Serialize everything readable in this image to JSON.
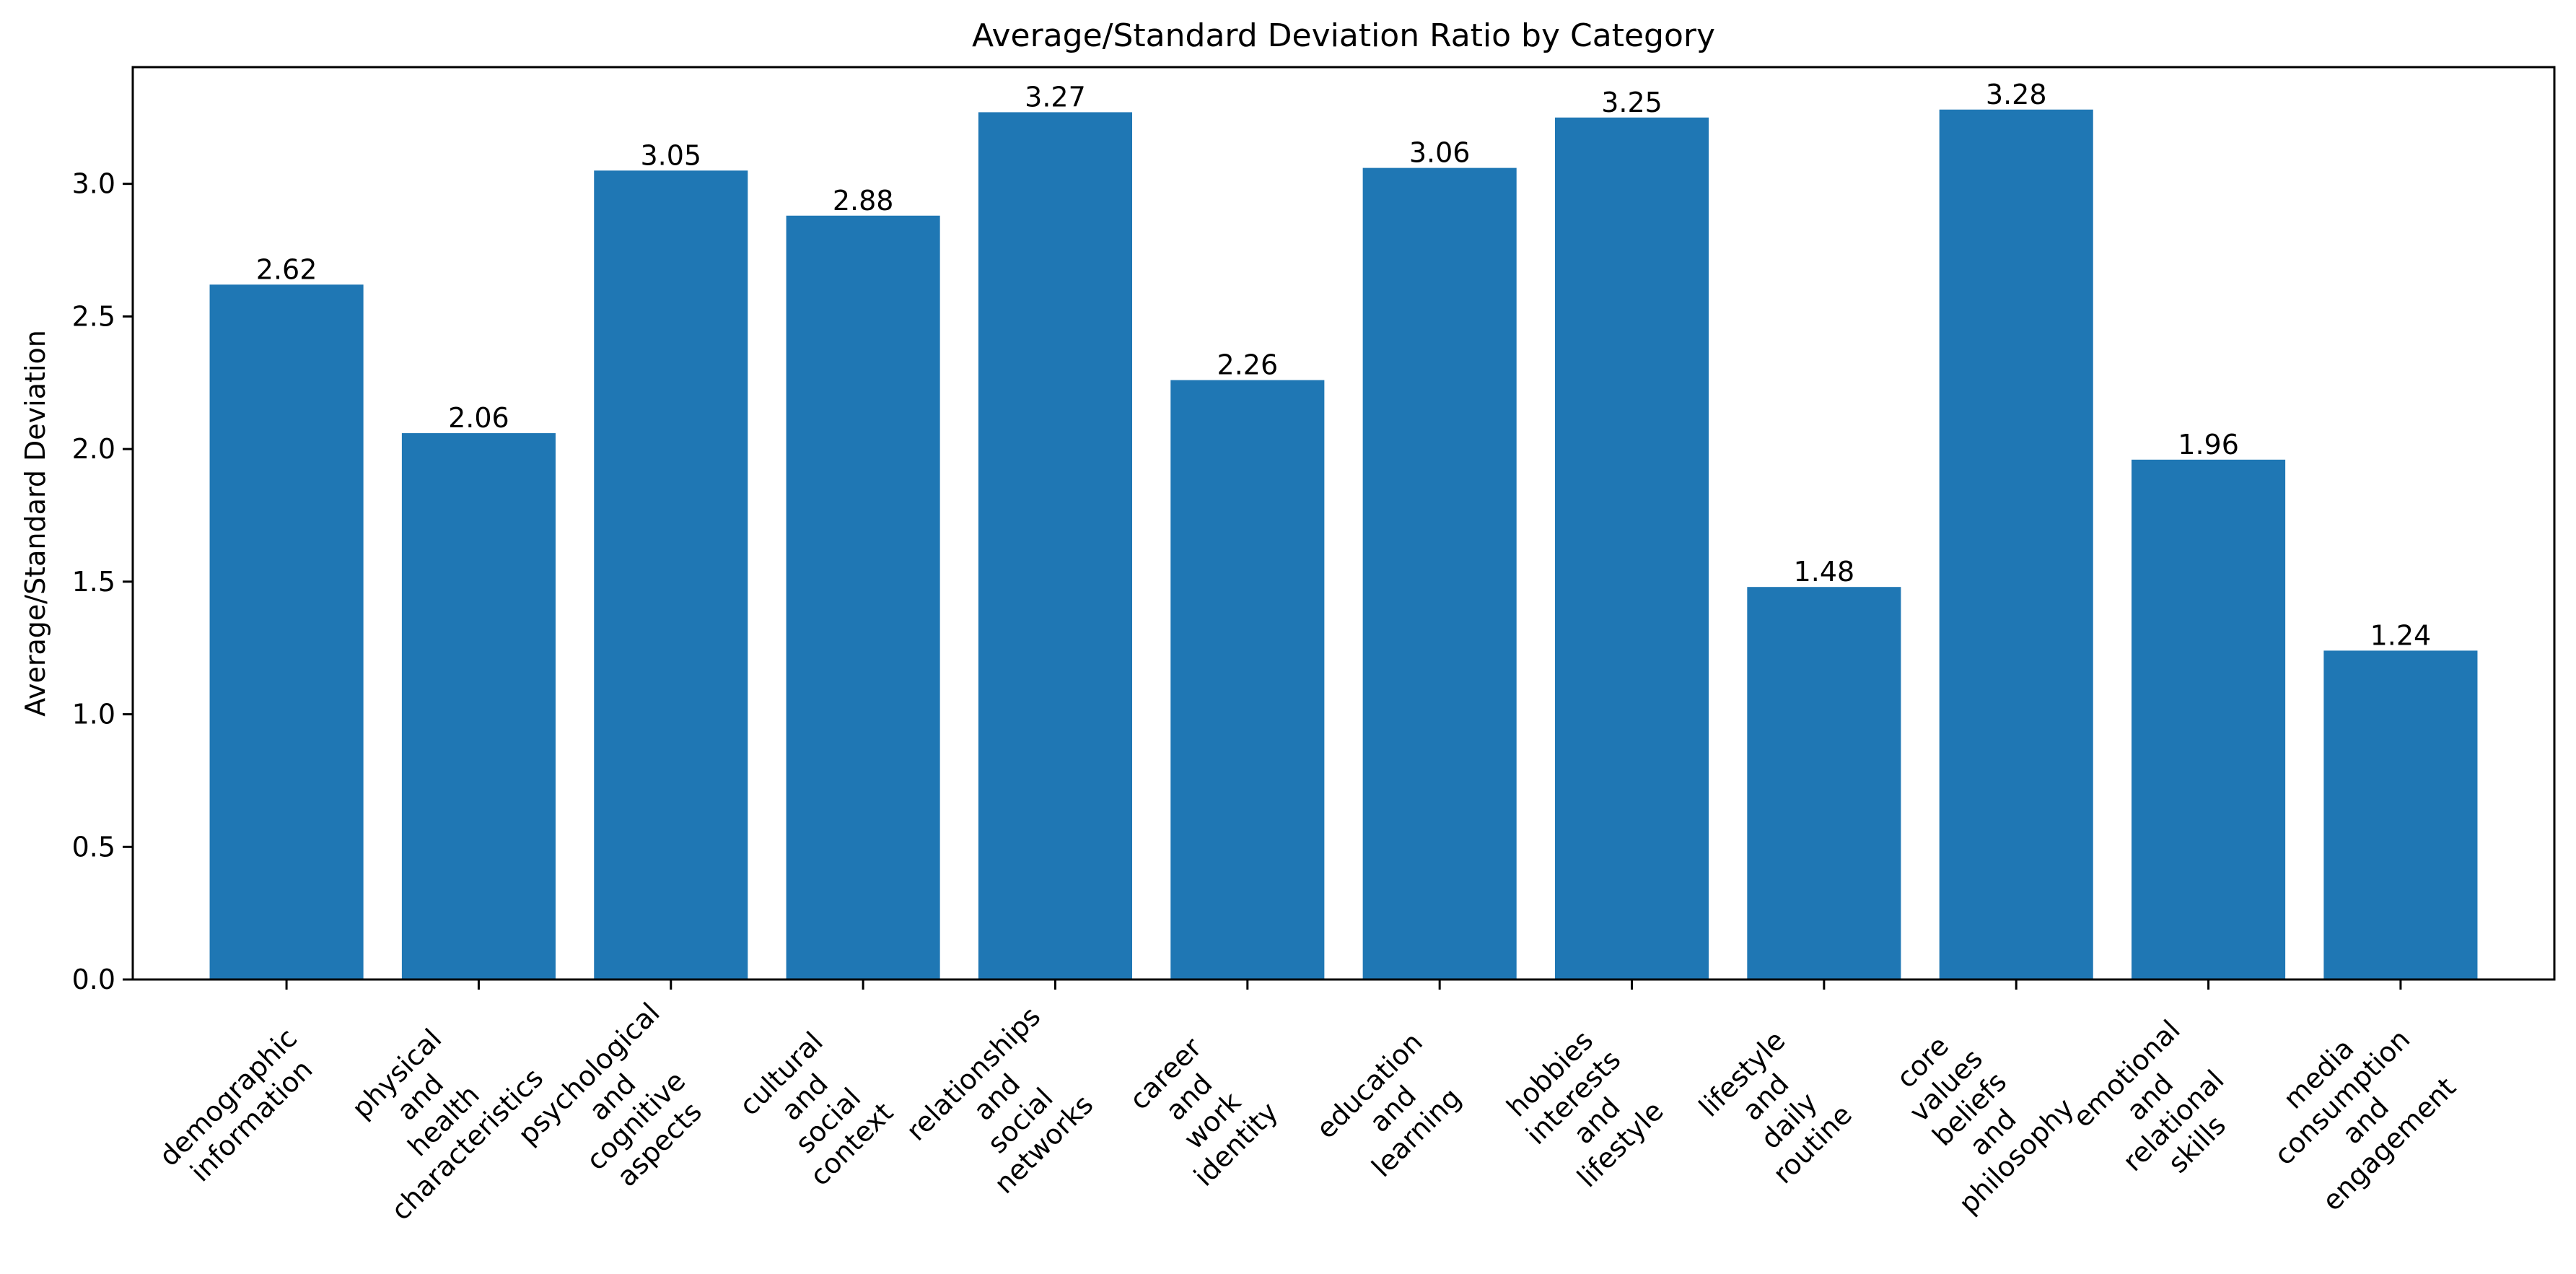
{
  "chart_data": {
    "type": "bar",
    "title": "Average/Standard Deviation Ratio by Category",
    "xlabel": "",
    "ylabel": "Average/Standard Deviation",
    "ylim": [
      0,
      3.44
    ],
    "yticks": [
      "0.0",
      "0.5",
      "1.0",
      "1.5",
      "2.0",
      "2.5",
      "3.0"
    ],
    "grid": false,
    "bar_color": "#1f77b4",
    "categories": [
      "demographic\ninformation",
      "physical\nand\nhealth\ncharacteristics",
      "psychological\nand\ncognitive\naspects",
      "cultural\nand\nsocial\ncontext",
      "relationships\nand\nsocial\nnetworks",
      "career\nand\nwork\nidentity",
      "education\nand\nlearning",
      "hobbies\ninterests\nand\nlifestyle",
      "lifestyle\nand\ndaily\nroutine",
      "core\nvalues\nbeliefs\nand\nphilosophy",
      "emotional\nand\nrelational\nskills",
      "media\nconsumption\nand\nengagement"
    ],
    "values": [
      2.62,
      2.06,
      3.05,
      2.88,
      3.27,
      2.26,
      3.06,
      3.25,
      1.48,
      3.28,
      1.96,
      1.24
    ],
    "value_labels": [
      "2.62",
      "2.06",
      "3.05",
      "2.88",
      "3.27",
      "2.26",
      "3.06",
      "3.25",
      "1.48",
      "3.28",
      "1.96",
      "1.24"
    ]
  }
}
